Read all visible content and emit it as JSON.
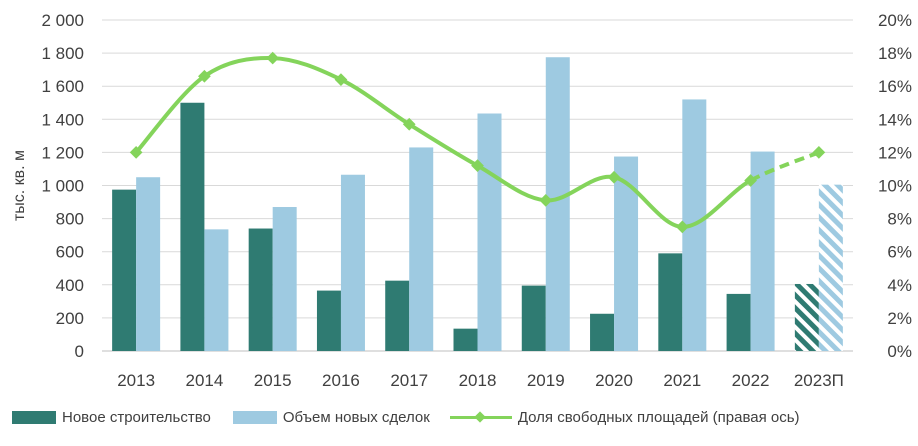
{
  "chart_data": {
    "type": "bar",
    "categories": [
      "2013",
      "2014",
      "2015",
      "2016",
      "2017",
      "2018",
      "2019",
      "2020",
      "2021",
      "2022",
      "2023П"
    ],
    "series": [
      {
        "name": "Новое строительство",
        "type": "bar",
        "axis": "left",
        "color": "#2f7b72",
        "values": [
          975,
          1500,
          740,
          365,
          425,
          135,
          395,
          225,
          590,
          345,
          405
        ]
      },
      {
        "name": "Объем новых сделок",
        "type": "bar",
        "axis": "right-of-pair",
        "color": "#9ecae1",
        "values": [
          1050,
          735,
          870,
          1065,
          1230,
          1435,
          1775,
          1175,
          1520,
          1205,
          1005
        ]
      },
      {
        "name": "Доля свободных площадей (правая ось)",
        "type": "line",
        "axis": "right",
        "color": "#84d45b",
        "values": [
          12.0,
          16.6,
          17.7,
          16.4,
          13.7,
          11.2,
          9.1,
          10.5,
          7.5,
          10.3,
          12.0
        ]
      }
    ],
    "forecast_category": "2023П",
    "ylabel": "тыс. кв. м",
    "ylim": [
      0,
      2000
    ],
    "yticks": [
      "0",
      "200",
      "400",
      "600",
      "800",
      "1 000",
      "1 200",
      "1 400",
      "1 600",
      "1 800",
      "2 000"
    ],
    "y2lim": [
      0,
      20
    ],
    "y2ticks": [
      "0%",
      "2%",
      "4%",
      "6%",
      "8%",
      "10%",
      "12%",
      "14%",
      "16%",
      "18%",
      "20%"
    ],
    "grid": true,
    "legend_position": "bottom"
  }
}
